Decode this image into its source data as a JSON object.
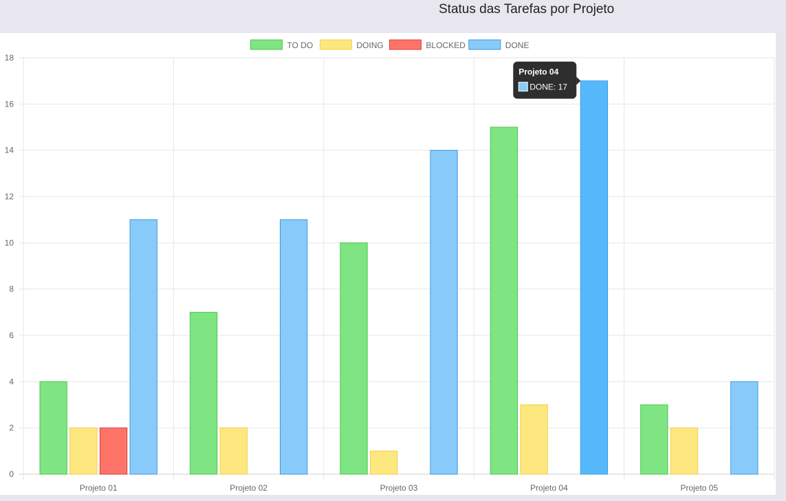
{
  "header": {
    "title": "Status das Tarefas por Projeto"
  },
  "chart_data": {
    "type": "bar",
    "title": "",
    "xlabel": "",
    "ylabel": "",
    "ylim": [
      0,
      18
    ],
    "y_ticks": [
      0,
      2,
      4,
      6,
      8,
      10,
      12,
      14,
      16,
      18
    ],
    "grid": true,
    "legend": "top-center",
    "categories": [
      "Projeto 01",
      "Projeto 02",
      "Projeto 03",
      "Projeto 04",
      "Projeto 05"
    ],
    "series": [
      {
        "name": "TO DO",
        "values": [
          4,
          7,
          10,
          15,
          3
        ],
        "fill": "#7ee582",
        "stroke": "#4cc552"
      },
      {
        "name": "DOING",
        "values": [
          2,
          2,
          1,
          3,
          2
        ],
        "fill": "#fde77f",
        "stroke": "#f0cf4a"
      },
      {
        "name": "BLOCKED",
        "values": [
          2,
          0,
          0,
          0,
          0
        ],
        "fill": "#fe7469",
        "stroke": "#d93b34"
      },
      {
        "name": "DONE",
        "values": [
          11,
          11,
          14,
          17,
          4
        ],
        "fill": "#88cbfa",
        "stroke": "#3a9ae0",
        "highlight_fill": "#56b9fb"
      }
    ],
    "tooltip": {
      "title": "Projeto 04",
      "label": "DONE: 17",
      "series_index": 3,
      "category_index": 3
    }
  }
}
